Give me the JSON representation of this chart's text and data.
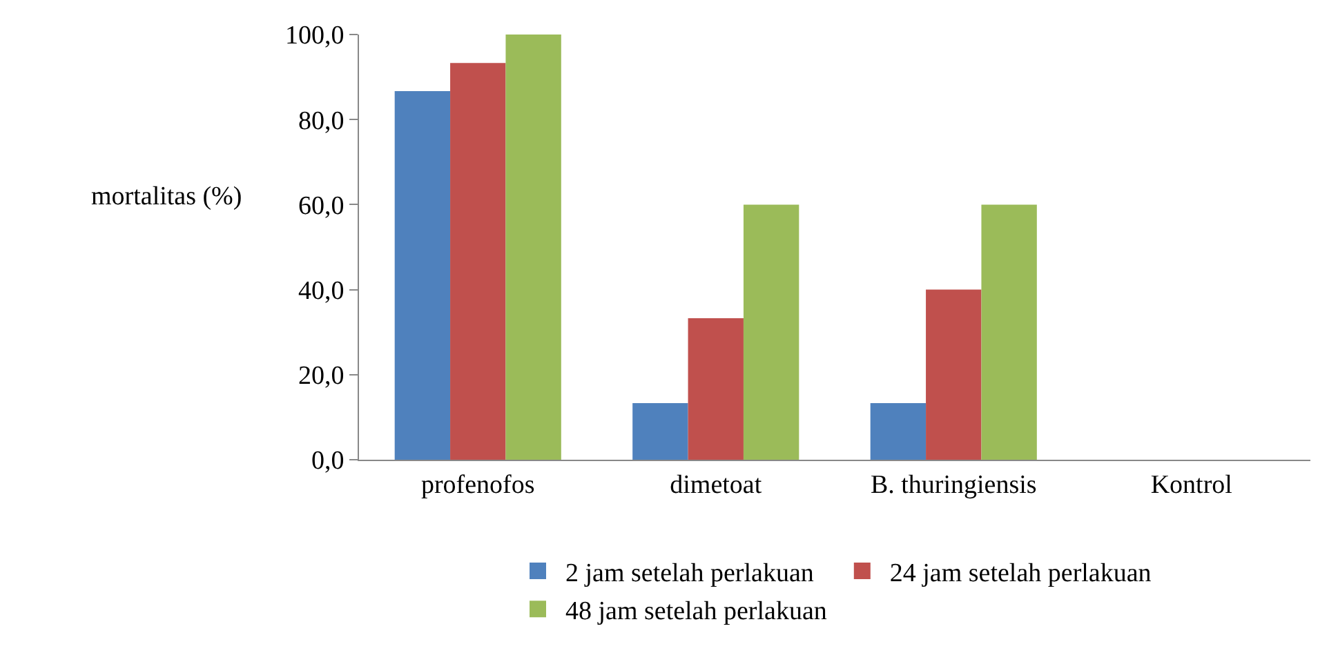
{
  "chart_data": {
    "type": "bar",
    "ylabel": "mortalitas (%)",
    "categories": [
      "profenofos",
      "dimetoat",
      "B. thuringiensis",
      "Kontrol"
    ],
    "series": [
      {
        "name": "2 jam setelah perlakuan",
        "color": "#4f81bd",
        "values": [
          86.7,
          13.3,
          13.3,
          0
        ]
      },
      {
        "name": "24 jam setelah perlakuan",
        "color": "#c0504d",
        "values": [
          93.3,
          33.3,
          40,
          0
        ]
      },
      {
        "name": "48 jam setelah perlakuan",
        "color": "#9bbb59",
        "values": [
          100,
          60,
          60,
          0
        ]
      }
    ],
    "ylim": [
      0,
      100
    ],
    "yticks": [
      {
        "value": 0,
        "label": "0,0"
      },
      {
        "value": 20,
        "label": "20,0"
      },
      {
        "value": 40,
        "label": "40,0"
      },
      {
        "value": 60,
        "label": "60,0"
      },
      {
        "value": 80,
        "label": "80,0"
      },
      {
        "value": 100,
        "label": "100,0"
      }
    ],
    "grid": false,
    "legend": "bottom"
  }
}
